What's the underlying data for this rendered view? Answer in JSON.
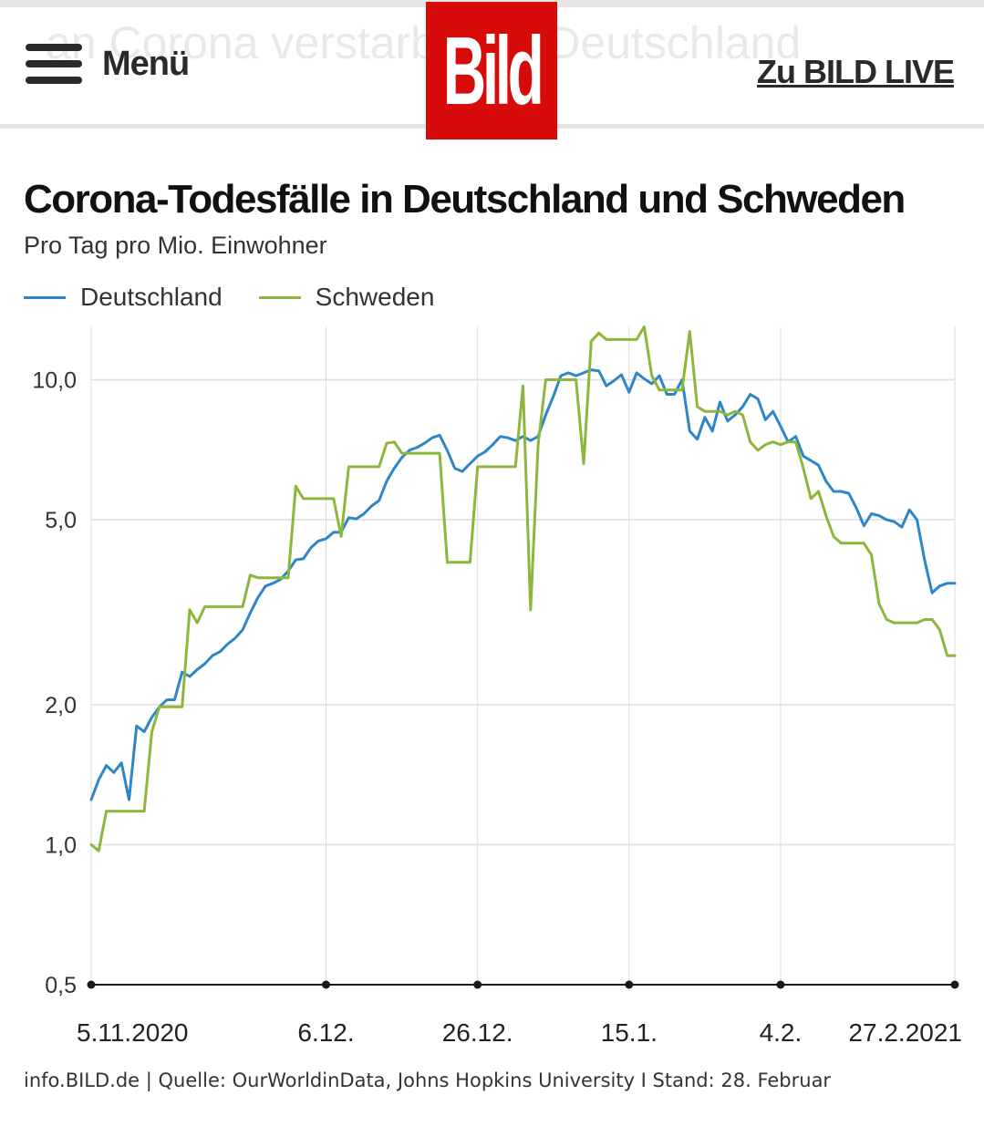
{
  "header": {
    "ghost_text": "an Corona verstarben in Deutschland",
    "menu_label": "Menü",
    "logo_text": "Bild",
    "live_link": "Zu BILD LIVE"
  },
  "colors": {
    "logo_red": "#d80b0b",
    "deutschland": "#2f86c6",
    "schweden": "#8db63c",
    "grid": "#dedede",
    "axis": "#1a1a1a"
  },
  "chart_data": {
    "type": "line",
    "title": "Corona-Todesfälle in Deutschland und Schweden",
    "subtitle": "Pro Tag pro Mio. Einwohner",
    "y_scale": "log",
    "ylim": [
      0.5,
      13
    ],
    "y_ticks": [
      {
        "value": 0.5,
        "label": "0,5"
      },
      {
        "value": 1.0,
        "label": "1,0"
      },
      {
        "value": 2.0,
        "label": "2,0"
      },
      {
        "value": 5.0,
        "label": "5,0"
      },
      {
        "value": 10.0,
        "label": "10,0"
      }
    ],
    "x_start": "2020-11-05",
    "x_end": "2021-02-27",
    "x_ticks": [
      {
        "date": "2020-11-05",
        "label": "5.11.2020"
      },
      {
        "date": "2020-12-06",
        "label": "6.12."
      },
      {
        "date": "2020-12-26",
        "label": "26.12."
      },
      {
        "date": "2021-01-15",
        "label": "15.1."
      },
      {
        "date": "2021-02-04",
        "label": "4.2."
      },
      {
        "date": "2021-02-27",
        "label": "27.2.2021"
      }
    ],
    "legend_position": "top-left",
    "grid": true,
    "series": [
      {
        "name": "Deutschland",
        "color": "#2f86c6",
        "points": [
          [
            "2020-11-05",
            1.25
          ],
          [
            "2020-11-06",
            1.38
          ],
          [
            "2020-11-07",
            1.48
          ],
          [
            "2020-11-08",
            1.43
          ],
          [
            "2020-11-09",
            1.5
          ],
          [
            "2020-11-10",
            1.25
          ],
          [
            "2020-11-11",
            1.8
          ],
          [
            "2020-11-12",
            1.75
          ],
          [
            "2020-11-13",
            1.88
          ],
          [
            "2020-11-14",
            1.98
          ],
          [
            "2020-11-15",
            2.05
          ],
          [
            "2020-11-16",
            2.05
          ],
          [
            "2020-11-17",
            2.35
          ],
          [
            "2020-11-18",
            2.3
          ],
          [
            "2020-11-19",
            2.38
          ],
          [
            "2020-11-20",
            2.45
          ],
          [
            "2020-11-21",
            2.55
          ],
          [
            "2020-11-22",
            2.6
          ],
          [
            "2020-11-23",
            2.7
          ],
          [
            "2020-11-24",
            2.78
          ],
          [
            "2020-11-25",
            2.9
          ],
          [
            "2020-11-26",
            3.15
          ],
          [
            "2020-11-27",
            3.4
          ],
          [
            "2020-11-28",
            3.6
          ],
          [
            "2020-11-29",
            3.65
          ],
          [
            "2020-11-30",
            3.72
          ],
          [
            "2020-12-01",
            3.88
          ],
          [
            "2020-12-02",
            4.1
          ],
          [
            "2020-12-03",
            4.12
          ],
          [
            "2020-12-04",
            4.35
          ],
          [
            "2020-12-05",
            4.5
          ],
          [
            "2020-12-06",
            4.55
          ],
          [
            "2020-12-07",
            4.7
          ],
          [
            "2020-12-08",
            4.7
          ],
          [
            "2020-12-09",
            5.05
          ],
          [
            "2020-12-10",
            5.02
          ],
          [
            "2020-12-11",
            5.15
          ],
          [
            "2020-12-12",
            5.35
          ],
          [
            "2020-12-13",
            5.5
          ],
          [
            "2020-12-14",
            6.05
          ],
          [
            "2020-12-15",
            6.45
          ],
          [
            "2020-12-16",
            6.8
          ],
          [
            "2020-12-17",
            7.05
          ],
          [
            "2020-12-18",
            7.15
          ],
          [
            "2020-12-19",
            7.3
          ],
          [
            "2020-12-20",
            7.5
          ],
          [
            "2020-12-21",
            7.6
          ],
          [
            "2020-12-22",
            7.05
          ],
          [
            "2020-12-23",
            6.45
          ],
          [
            "2020-12-24",
            6.35
          ],
          [
            "2020-12-25",
            6.6
          ],
          [
            "2020-12-26",
            6.85
          ],
          [
            "2020-12-27",
            7.0
          ],
          [
            "2020-12-28",
            7.25
          ],
          [
            "2020-12-29",
            7.55
          ],
          [
            "2020-12-30",
            7.5
          ],
          [
            "2020-12-31",
            7.4
          ],
          [
            "2021-01-01",
            7.55
          ],
          [
            "2021-01-02",
            7.4
          ],
          [
            "2021-01-03",
            7.55
          ],
          [
            "2021-01-04",
            8.4
          ],
          [
            "2021-01-05",
            9.2
          ],
          [
            "2021-01-06",
            10.2
          ],
          [
            "2021-01-07",
            10.35
          ],
          [
            "2021-01-08",
            10.2
          ],
          [
            "2021-01-09",
            10.35
          ],
          [
            "2021-01-10",
            10.5
          ],
          [
            "2021-01-11",
            10.45
          ],
          [
            "2021-01-12",
            9.7
          ],
          [
            "2021-01-13",
            9.95
          ],
          [
            "2021-01-14",
            10.25
          ],
          [
            "2021-01-15",
            9.4
          ],
          [
            "2021-01-16",
            10.35
          ],
          [
            "2021-01-17",
            10.05
          ],
          [
            "2021-01-18",
            9.8
          ],
          [
            "2021-01-19",
            10.2
          ],
          [
            "2021-01-20",
            9.3
          ],
          [
            "2021-01-21",
            9.3
          ],
          [
            "2021-01-22",
            10.0
          ],
          [
            "2021-01-23",
            7.75
          ],
          [
            "2021-01-24",
            7.45
          ],
          [
            "2021-01-25",
            8.3
          ],
          [
            "2021-01-26",
            7.75
          ],
          [
            "2021-01-27",
            8.95
          ],
          [
            "2021-01-28",
            8.15
          ],
          [
            "2021-01-29",
            8.4
          ],
          [
            "2021-01-30",
            8.75
          ],
          [
            "2021-01-31",
            9.3
          ],
          [
            "2021-02-01",
            9.1
          ],
          [
            "2021-02-02",
            8.2
          ],
          [
            "2021-02-03",
            8.55
          ],
          [
            "2021-02-04",
            7.95
          ],
          [
            "2021-02-05",
            7.35
          ],
          [
            "2021-02-06",
            7.55
          ],
          [
            "2021-02-07",
            6.85
          ],
          [
            "2021-02-08",
            6.7
          ],
          [
            "2021-02-09",
            6.55
          ],
          [
            "2021-02-10",
            6.05
          ],
          [
            "2021-02-11",
            5.75
          ],
          [
            "2021-02-12",
            5.75
          ],
          [
            "2021-02-13",
            5.7
          ],
          [
            "2021-02-14",
            5.3
          ],
          [
            "2021-02-15",
            4.85
          ],
          [
            "2021-02-16",
            5.15
          ],
          [
            "2021-02-17",
            5.1
          ],
          [
            "2021-02-18",
            5.0
          ],
          [
            "2021-02-19",
            4.95
          ],
          [
            "2021-02-20",
            4.82
          ],
          [
            "2021-02-21",
            5.25
          ],
          [
            "2021-02-22",
            5.0
          ],
          [
            "2021-02-23",
            4.1
          ],
          [
            "2021-02-24",
            3.48
          ],
          [
            "2021-02-25",
            3.6
          ],
          [
            "2021-02-26",
            3.65
          ],
          [
            "2021-02-27",
            3.65
          ]
        ]
      },
      {
        "name": "Schweden",
        "color": "#8db63c",
        "points": [
          [
            "2020-11-05",
            1.0
          ],
          [
            "2020-11-06",
            0.97
          ],
          [
            "2020-11-07",
            1.18
          ],
          [
            "2020-11-08",
            1.18
          ],
          [
            "2020-11-09",
            1.18
          ],
          [
            "2020-11-10",
            1.18
          ],
          [
            "2020-11-11",
            1.18
          ],
          [
            "2020-11-12",
            1.18
          ],
          [
            "2020-11-13",
            1.75
          ],
          [
            "2020-11-14",
            1.98
          ],
          [
            "2020-11-15",
            1.98
          ],
          [
            "2020-11-16",
            1.98
          ],
          [
            "2020-11-17",
            1.98
          ],
          [
            "2020-11-18",
            3.2
          ],
          [
            "2020-11-19",
            3.0
          ],
          [
            "2020-11-20",
            3.25
          ],
          [
            "2020-11-21",
            3.25
          ],
          [
            "2020-11-22",
            3.25
          ],
          [
            "2020-11-23",
            3.25
          ],
          [
            "2020-11-24",
            3.25
          ],
          [
            "2020-11-25",
            3.25
          ],
          [
            "2020-11-26",
            3.8
          ],
          [
            "2020-11-27",
            3.75
          ],
          [
            "2020-11-28",
            3.75
          ],
          [
            "2020-11-29",
            3.75
          ],
          [
            "2020-11-30",
            3.75
          ],
          [
            "2020-12-01",
            3.75
          ],
          [
            "2020-12-02",
            5.9
          ],
          [
            "2020-12-03",
            5.55
          ],
          [
            "2020-12-04",
            5.55
          ],
          [
            "2020-12-05",
            5.55
          ],
          [
            "2020-12-06",
            5.55
          ],
          [
            "2020-12-07",
            5.55
          ],
          [
            "2020-12-08",
            4.6
          ],
          [
            "2020-12-09",
            6.5
          ],
          [
            "2020-12-10",
            6.5
          ],
          [
            "2020-12-11",
            6.5
          ],
          [
            "2020-12-12",
            6.5
          ],
          [
            "2020-12-13",
            6.5
          ],
          [
            "2020-12-14",
            7.3
          ],
          [
            "2020-12-15",
            7.35
          ],
          [
            "2020-12-16",
            6.95
          ],
          [
            "2020-12-17",
            6.95
          ],
          [
            "2020-12-18",
            6.95
          ],
          [
            "2020-12-19",
            6.95
          ],
          [
            "2020-12-20",
            6.95
          ],
          [
            "2020-12-21",
            6.95
          ],
          [
            "2020-12-22",
            4.05
          ],
          [
            "2020-12-23",
            4.05
          ],
          [
            "2020-12-24",
            4.05
          ],
          [
            "2020-12-25",
            4.05
          ],
          [
            "2020-12-26",
            6.5
          ],
          [
            "2020-12-27",
            6.5
          ],
          [
            "2020-12-28",
            6.5
          ],
          [
            "2020-12-29",
            6.5
          ],
          [
            "2020-12-30",
            6.5
          ],
          [
            "2020-12-31",
            6.5
          ],
          [
            "2021-01-01",
            9.7
          ],
          [
            "2021-01-02",
            3.2
          ],
          [
            "2021-01-03",
            7.25
          ],
          [
            "2021-01-04",
            10.0
          ],
          [
            "2021-01-05",
            10.0
          ],
          [
            "2021-01-06",
            10.0
          ],
          [
            "2021-01-07",
            10.0
          ],
          [
            "2021-01-08",
            10.0
          ],
          [
            "2021-01-09",
            6.6
          ],
          [
            "2021-01-10",
            12.1
          ],
          [
            "2021-01-11",
            12.6
          ],
          [
            "2021-01-12",
            12.2
          ],
          [
            "2021-01-13",
            12.2
          ],
          [
            "2021-01-14",
            12.2
          ],
          [
            "2021-01-15",
            12.2
          ],
          [
            "2021-01-16",
            12.2
          ],
          [
            "2021-01-17",
            13.0
          ],
          [
            "2021-01-18",
            10.2
          ],
          [
            "2021-01-19",
            9.5
          ],
          [
            "2021-01-20",
            9.5
          ],
          [
            "2021-01-21",
            9.5
          ],
          [
            "2021-01-22",
            9.5
          ],
          [
            "2021-01-23",
            12.7
          ],
          [
            "2021-01-24",
            8.75
          ],
          [
            "2021-01-25",
            8.55
          ],
          [
            "2021-01-26",
            8.55
          ],
          [
            "2021-01-27",
            8.55
          ],
          [
            "2021-01-28",
            8.4
          ],
          [
            "2021-01-29",
            8.55
          ],
          [
            "2021-01-30",
            8.4
          ],
          [
            "2021-01-31",
            7.35
          ],
          [
            "2021-02-01",
            7.05
          ],
          [
            "2021-02-02",
            7.25
          ],
          [
            "2021-02-03",
            7.35
          ],
          [
            "2021-02-04",
            7.25
          ],
          [
            "2021-02-05",
            7.35
          ],
          [
            "2021-02-06",
            7.35
          ],
          [
            "2021-02-07",
            6.45
          ],
          [
            "2021-02-08",
            5.55
          ],
          [
            "2021-02-09",
            5.75
          ],
          [
            "2021-02-10",
            5.1
          ],
          [
            "2021-02-11",
            4.6
          ],
          [
            "2021-02-12",
            4.45
          ],
          [
            "2021-02-13",
            4.45
          ],
          [
            "2021-02-14",
            4.45
          ],
          [
            "2021-02-15",
            4.45
          ],
          [
            "2021-02-16",
            4.2
          ],
          [
            "2021-02-17",
            3.3
          ],
          [
            "2021-02-18",
            3.05
          ],
          [
            "2021-02-19",
            3.0
          ],
          [
            "2021-02-20",
            3.0
          ],
          [
            "2021-02-21",
            3.0
          ],
          [
            "2021-02-22",
            3.0
          ],
          [
            "2021-02-23",
            3.05
          ],
          [
            "2021-02-24",
            3.05
          ],
          [
            "2021-02-25",
            2.9
          ],
          [
            "2021-02-26",
            2.55
          ],
          [
            "2021-02-27",
            2.55
          ]
        ]
      }
    ],
    "source": "info.BILD.de | Quelle: OurWorldinData, Johns Hopkins University I Stand: 28. Februar"
  }
}
